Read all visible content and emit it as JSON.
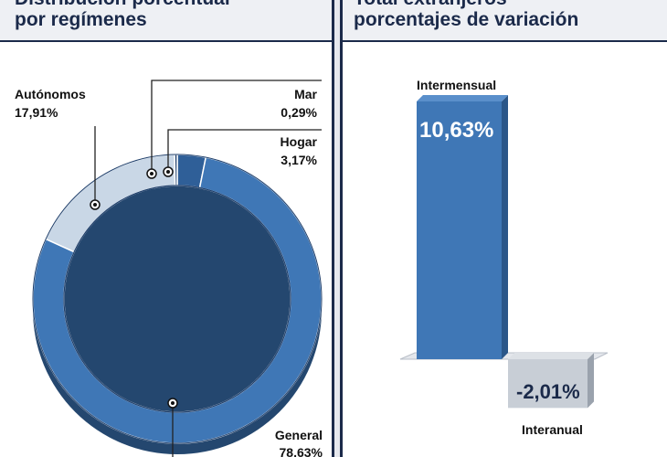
{
  "left_panel": {
    "title_line1": "Distribución porcentual",
    "title_line2": "por regímenes"
  },
  "right_panel": {
    "title_line1": "Total extranjeros",
    "title_line2": "porcentajes de variación"
  },
  "colors": {
    "general": "#3f77b6",
    "hogar": "#2f5f98",
    "mar": "#1f3f6b",
    "autonomos": "#c9d7e6",
    "bar_positive": "#3f77b6",
    "bar_negative": "#c8ced6"
  },
  "chart_data": [
    {
      "type": "pie",
      "variant": "donut",
      "slices": [
        {
          "label": "General",
          "value": 78.63,
          "text": "78,63%"
        },
        {
          "label": "Autónomos",
          "value": 17.91,
          "text": "17,91%"
        },
        {
          "label": "Mar",
          "value": 0.29,
          "text": "0,29%"
        },
        {
          "label": "Hogar",
          "value": 3.17,
          "text": "3,17%"
        }
      ]
    },
    {
      "type": "bar",
      "categories": [
        "Intermensual",
        "Interanual"
      ],
      "values": [
        10.63,
        -2.01
      ],
      "value_labels": [
        "10,63%",
        "-2,01%"
      ]
    }
  ]
}
